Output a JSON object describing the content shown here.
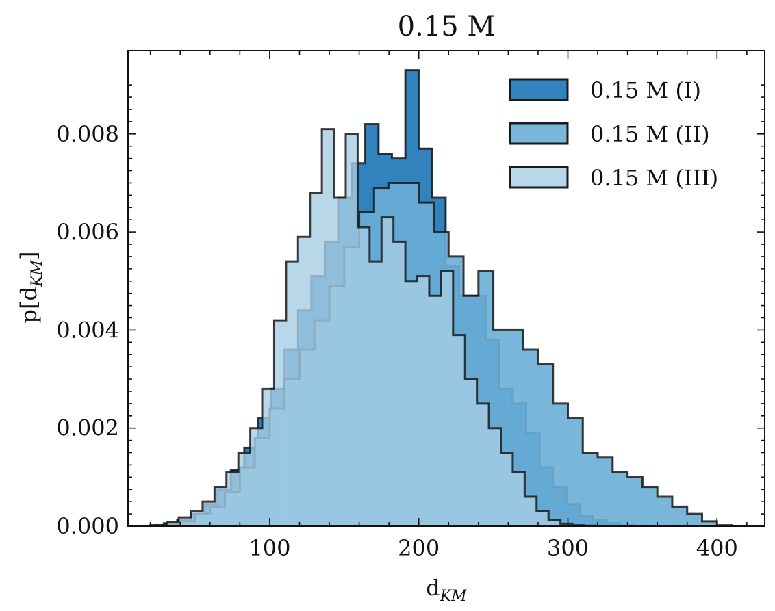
{
  "chart_data": {
    "type": "histogram",
    "title": "0.15 M",
    "xlabel": {
      "main": "d",
      "sub": "KM"
    },
    "ylabel": {
      "main": "p[d",
      "sub": "KM",
      "close": "]"
    },
    "xlim": [
      5,
      432
    ],
    "ylim": [
      0,
      0.0097
    ],
    "xticks": [
      100,
      200,
      300,
      400
    ],
    "yticks": [
      0.0,
      0.002,
      0.004,
      0.006,
      0.008
    ],
    "ytick_labels": [
      "0.000",
      "0.002",
      "0.004",
      "0.006",
      "0.008"
    ],
    "legend_position": "top-right",
    "series": [
      {
        "name": "0.15 M (I)",
        "fill": "#3182bd",
        "fill_opacity": 1.0,
        "edges": [
          20,
          29,
          38,
          47,
          56,
          65,
          74,
          83,
          92,
          101,
          110,
          119,
          128,
          137,
          146,
          155,
          164,
          173,
          182,
          191,
          200,
          209,
          218,
          227,
          236,
          245,
          254,
          263,
          272,
          281,
          290,
          299,
          308,
          317,
          326,
          335,
          344
        ],
        "density": [
          2e-05,
          6e-05,
          0.00013,
          0.00025,
          0.00045,
          0.00075,
          0.00115,
          0.0016,
          0.0022,
          0.0028,
          0.0036,
          0.0044,
          0.0051,
          0.0058,
          0.0067,
          0.0074,
          0.0082,
          0.0076,
          0.0075,
          0.0093,
          0.0077,
          0.0067,
          0.0053,
          0.0047,
          0.0047,
          0.0038,
          0.0028,
          0.0025,
          0.0019,
          0.0012,
          0.0008,
          0.00045,
          0.0002,
          0.00012,
          6e-05,
          2e-05
        ]
      },
      {
        "name": "0.15 M (II)",
        "fill": "#6baed6",
        "fill_opacity": 0.9,
        "edges": [
          30,
          40,
          50,
          60,
          70,
          80,
          90,
          100,
          110,
          120,
          130,
          140,
          150,
          160,
          170,
          180,
          190,
          200,
          210,
          220,
          230,
          240,
          250,
          260,
          270,
          280,
          290,
          300,
          310,
          320,
          330,
          340,
          350,
          360,
          370,
          380,
          390,
          400,
          410
        ],
        "density": [
          2e-05,
          0.0001,
          0.00025,
          0.0004,
          0.0007,
          0.0012,
          0.0018,
          0.0024,
          0.003,
          0.0036,
          0.0042,
          0.0049,
          0.0057,
          0.0064,
          0.0069,
          0.007,
          0.007,
          0.0066,
          0.006,
          0.0055,
          0.0047,
          0.0052,
          0.004,
          0.004,
          0.0036,
          0.0033,
          0.0025,
          0.0022,
          0.0015,
          0.0014,
          0.0011,
          0.001,
          0.0008,
          0.0006,
          0.0004,
          0.00025,
          0.0001,
          2e-05
        ]
      },
      {
        "name": "0.15 M (III)",
        "fill": "#a6cde3",
        "fill_opacity": 0.8,
        "edges": [
          23,
          31,
          39,
          47,
          55,
          63,
          71,
          79,
          87,
          95,
          103,
          111,
          119,
          127,
          135,
          143,
          151,
          159,
          167,
          175,
          183,
          191,
          199,
          207,
          215,
          223,
          231,
          239,
          247,
          255,
          263,
          271,
          279,
          287,
          295,
          303,
          311,
          319
        ],
        "density": [
          2e-05,
          8e-05,
          0.00018,
          0.0003,
          0.0005,
          0.0008,
          0.0011,
          0.0015,
          0.002,
          0.0028,
          0.0042,
          0.0054,
          0.0059,
          0.0068,
          0.0081,
          0.0067,
          0.008,
          0.0061,
          0.0054,
          0.0063,
          0.0058,
          0.005,
          0.0051,
          0.0047,
          0.0052,
          0.0039,
          0.003,
          0.0025,
          0.002,
          0.0015,
          0.0011,
          0.0006,
          0.0003,
          0.00012,
          5e-05,
          2e-05,
          1e-05
        ]
      }
    ]
  }
}
